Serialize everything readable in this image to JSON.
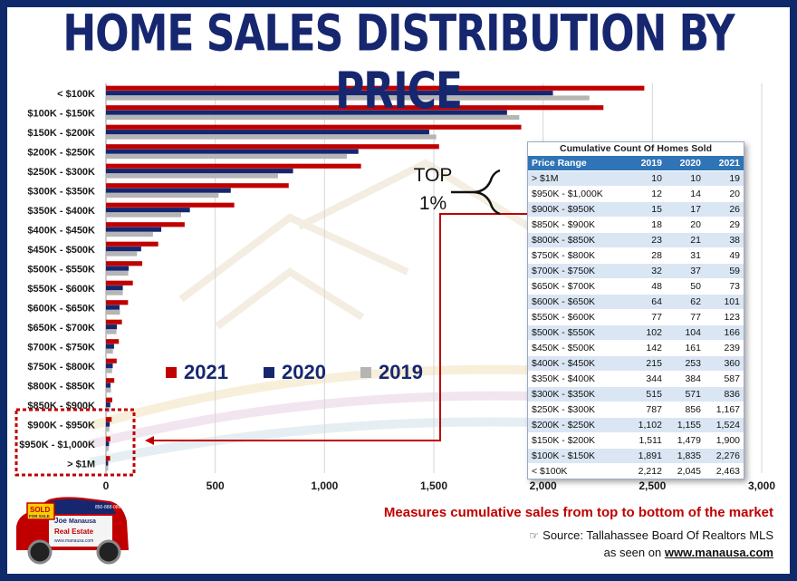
{
  "title": "HOME SALES DISTRIBUTION BY PRICE",
  "colors": {
    "y2021": "#c00000",
    "y2020": "#16276f",
    "y2019": "#b5b5b5",
    "accent": "#c00000",
    "frame": "#0f2a6b"
  },
  "chart_data": {
    "type": "bar",
    "orientation": "horizontal",
    "categories": [
      "< $100K",
      "$100K - $150K",
      "$150K - $200K",
      "$200K - $250K",
      "$250K - $300K",
      "$300K - $350K",
      "$350K - $400K",
      "$400K - $450K",
      "$450K - $500K",
      "$500K - $550K",
      "$550K - $600K",
      "$600K - $650K",
      "$650K - $700K",
      "$700K - $750K",
      "$750K - $800K",
      "$800K - $850K",
      "$850K - $900K",
      "$900K - $950K",
      "$950K - $1,000K",
      "> $1M"
    ],
    "series": [
      {
        "name": "2021",
        "color": "#c00000",
        "values": [
          2463,
          2276,
          1900,
          1524,
          1167,
          836,
          587,
          360,
          239,
          166,
          123,
          101,
          73,
          59,
          49,
          38,
          29,
          26,
          20,
          19
        ]
      },
      {
        "name": "2020",
        "color": "#16276f",
        "values": [
          2045,
          1835,
          1479,
          1155,
          856,
          571,
          384,
          253,
          161,
          104,
          77,
          62,
          50,
          37,
          31,
          21,
          20,
          17,
          14,
          10
        ]
      },
      {
        "name": "2019",
        "color": "#b5b5b5",
        "values": [
          2212,
          1891,
          1511,
          1102,
          787,
          515,
          344,
          215,
          142,
          102,
          77,
          64,
          48,
          32,
          28,
          23,
          18,
          15,
          12,
          10
        ]
      }
    ],
    "xlim": [
      0,
      3000
    ],
    "xticks": [
      0,
      500,
      1000,
      1500,
      2000,
      2500,
      3000
    ],
    "xtick_labels": [
      "0",
      "500",
      "1,000",
      "1,500",
      "2,000",
      "2,500",
      "3,000"
    ],
    "grid": true,
    "legend_placement": "center-left"
  },
  "legend": [
    {
      "label": "2021",
      "color": "#c00000"
    },
    {
      "label": "2020",
      "color": "#16276f"
    },
    {
      "label": "2019",
      "color": "#b5b5b5"
    }
  ],
  "annotation": {
    "line1": "TOP",
    "line2": "1%"
  },
  "table": {
    "title": "Cumulative Count Of Homes Sold",
    "headers": [
      "Price Range",
      "2019",
      "2020",
      "2021"
    ],
    "rows": [
      [
        "> $1M",
        "10",
        "10",
        "19"
      ],
      [
        "$950K - $1,000K",
        "12",
        "14",
        "20"
      ],
      [
        "$900K - $950K",
        "15",
        "17",
        "26"
      ],
      [
        "$850K - $900K",
        "18",
        "20",
        "29"
      ],
      [
        "$800K - $850K",
        "23",
        "21",
        "38"
      ],
      [
        "$750K - $800K",
        "28",
        "31",
        "49"
      ],
      [
        "$700K - $750K",
        "32",
        "37",
        "59"
      ],
      [
        "$650K - $700K",
        "48",
        "50",
        "73"
      ],
      [
        "$600K - $650K",
        "64",
        "62",
        "101"
      ],
      [
        "$550K - $600K",
        "77",
        "77",
        "123"
      ],
      [
        "$500K - $550K",
        "102",
        "104",
        "166"
      ],
      [
        "$450K - $500K",
        "142",
        "161",
        "239"
      ],
      [
        "$400K - $450K",
        "215",
        "253",
        "360"
      ],
      [
        "$350K - $400K",
        "344",
        "384",
        "587"
      ],
      [
        "$300K - $350K",
        "515",
        "571",
        "836"
      ],
      [
        "$250K - $300K",
        "787",
        "856",
        "1,167"
      ],
      [
        "$200K - $250K",
        "1,102",
        "1,155",
        "1,524"
      ],
      [
        "$150K - $200K",
        "1,511",
        "1,479",
        "1,900"
      ],
      [
        "$100K - $150K",
        "1,891",
        "1,835",
        "2,276"
      ],
      [
        "< $100K",
        "2,212",
        "2,045",
        "2,463"
      ]
    ]
  },
  "footnote": "Measures cumulative sales from top to bottom of the market",
  "source": "Source: Tallahassee Board Of Realtors MLS",
  "seen_prefix": "as seen on ",
  "seen_url": "www.manausa.com",
  "logo": {
    "sold": "SOLD",
    "for_sale": "FOR SALE",
    "name_first": "Joe",
    "name_last": "Manausa",
    "tagline": "Real Estate",
    "url": "www.manausa.com",
    "phone": "850-888-0888"
  }
}
